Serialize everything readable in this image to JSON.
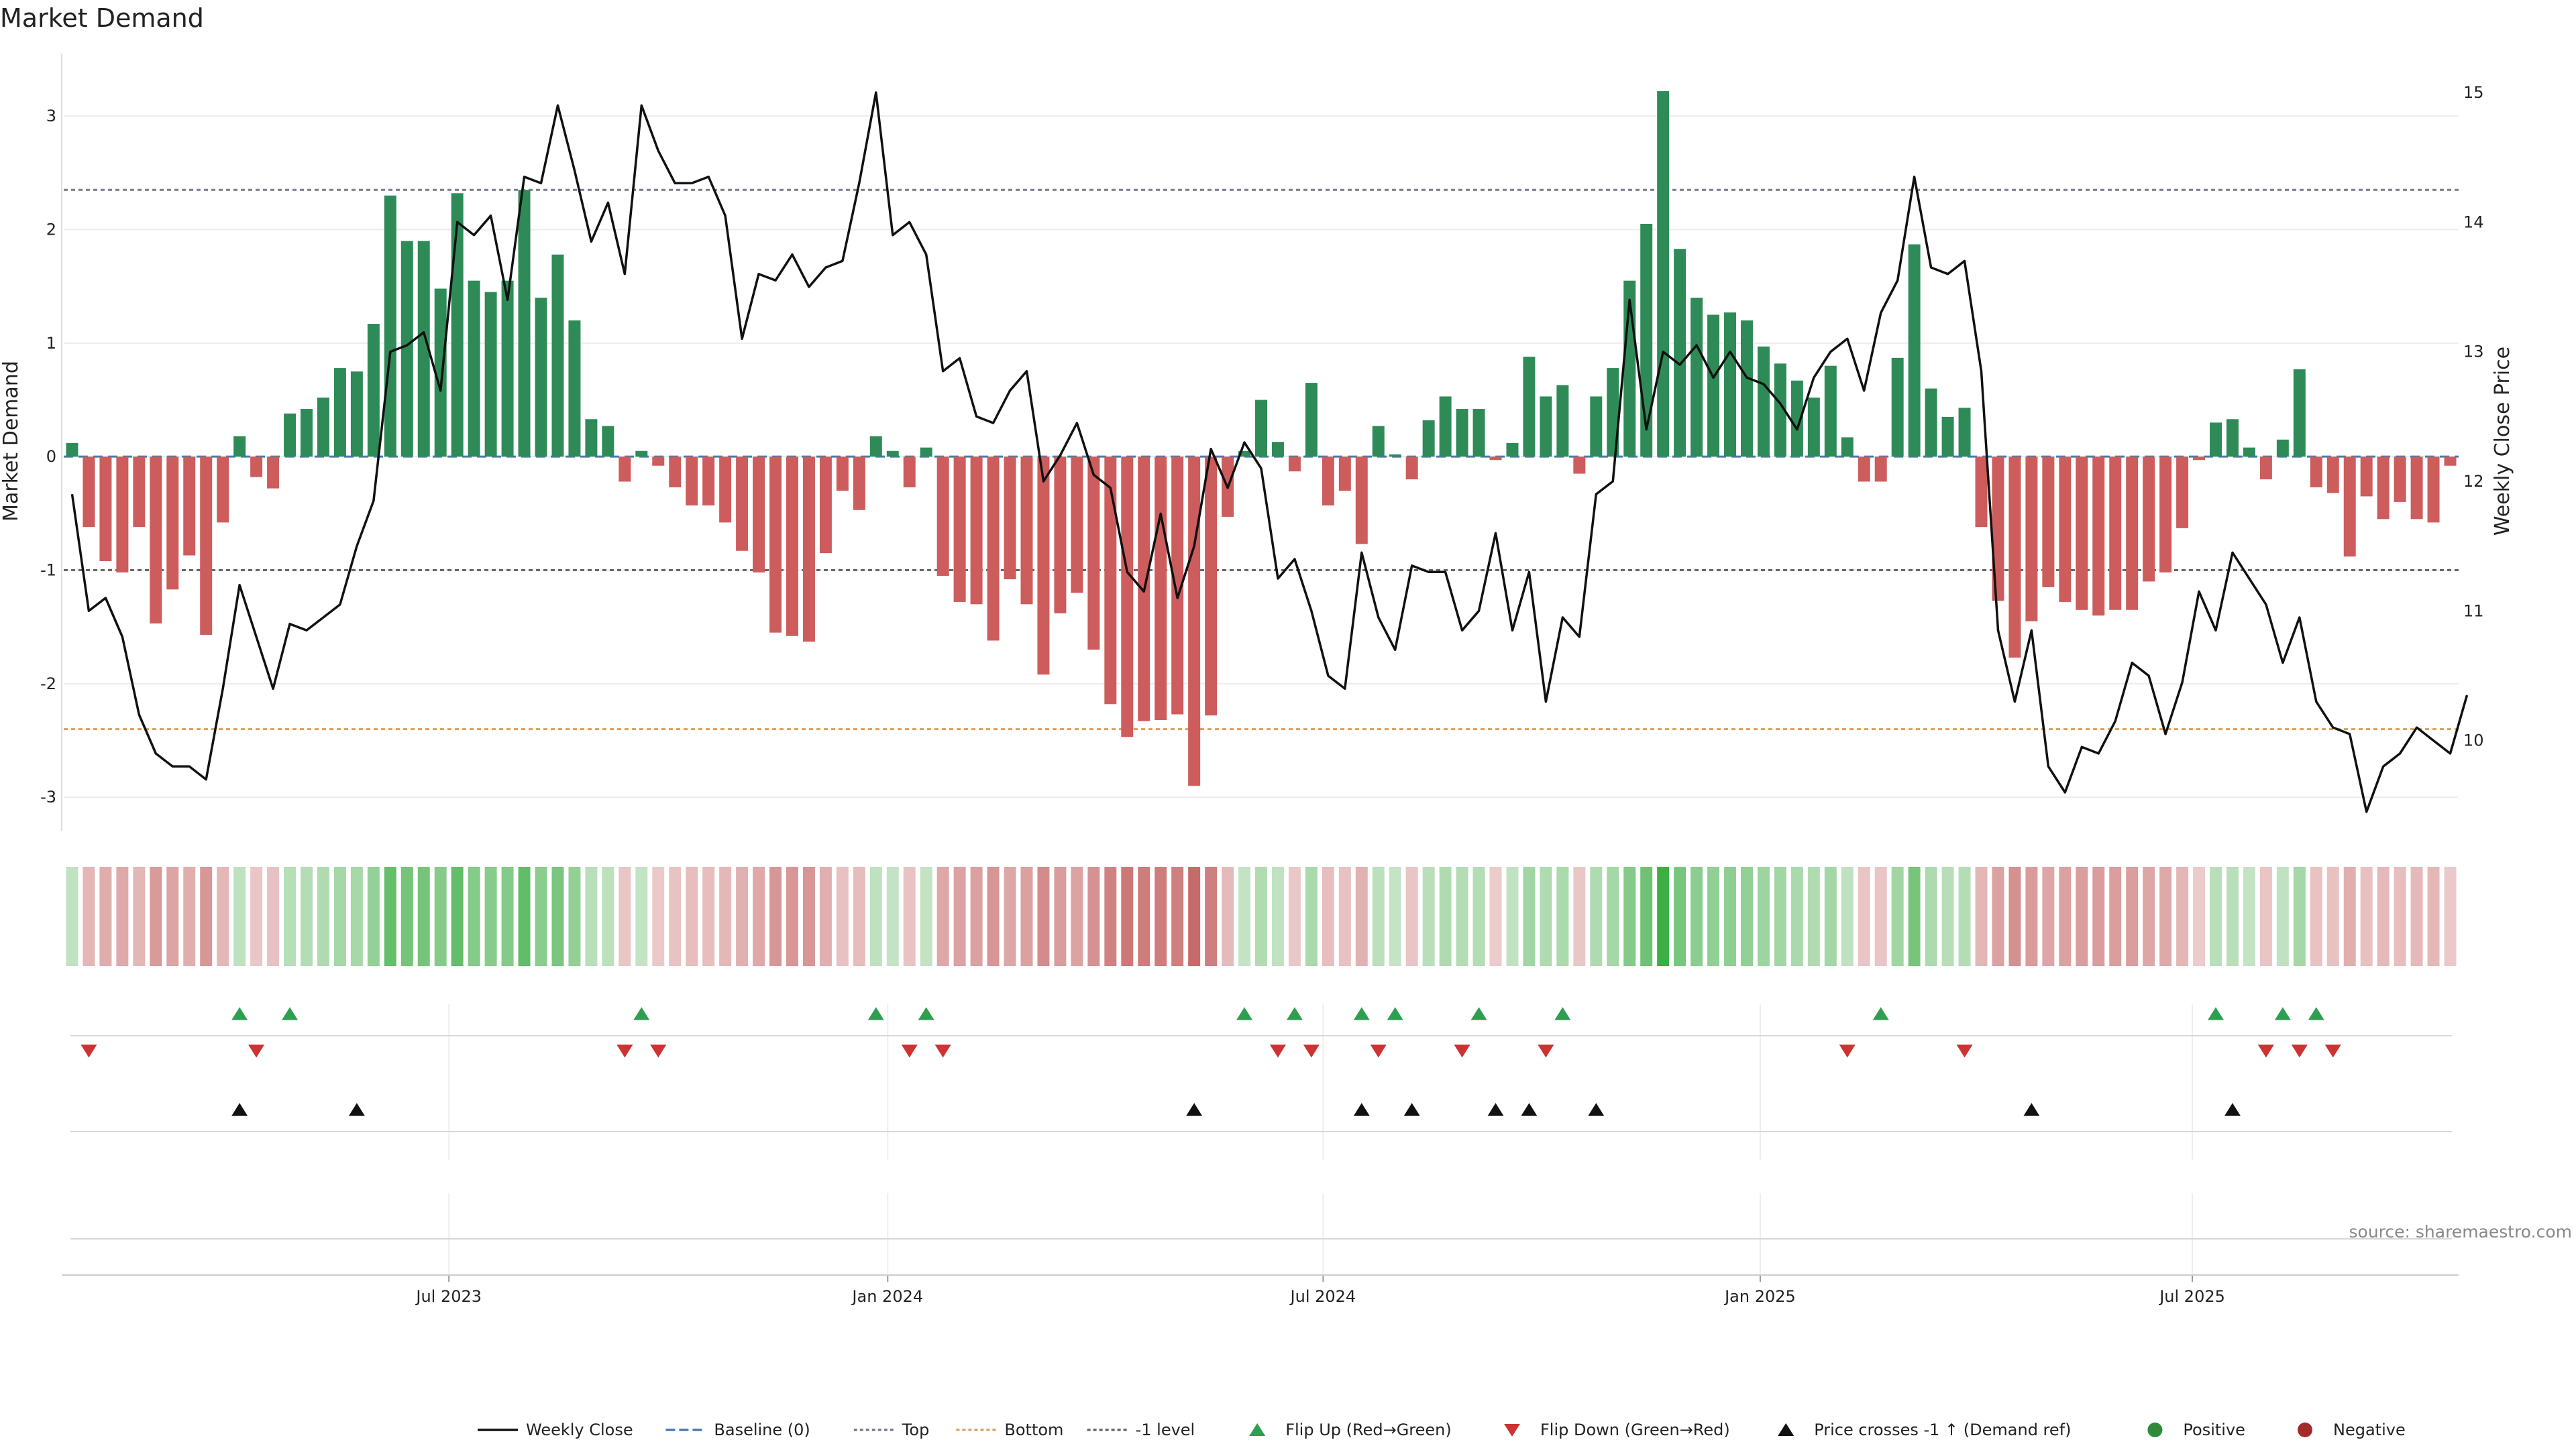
{
  "chart_data": {
    "type": "bar",
    "title": "Market Demand",
    "ylabel": "Market Demand",
    "y2label": "Weekly Close Price",
    "source": "source: sharemaestro.com",
    "ylim": [
      -3.3,
      3.55
    ],
    "y_ticks": [
      3,
      2,
      1,
      0,
      -1,
      -2,
      -3
    ],
    "y2lim": [
      9.3,
      15.3
    ],
    "y2_ticks": [
      15,
      14,
      13,
      12,
      11,
      10
    ],
    "x_ticks": [
      {
        "label": "Jul 2023",
        "week": 22.5
      },
      {
        "label": "Jan 2024",
        "week": 48.7
      },
      {
        "label": "Jul 2024",
        "week": 74.7
      },
      {
        "label": "Jan 2025",
        "week": 100.8
      },
      {
        "label": "Jul 2025",
        "week": 126.6
      }
    ],
    "reference_lines": {
      "top": 2.35,
      "bottom": -2.4,
      "minus_one": -1.0,
      "baseline": 0
    },
    "demand": [
      0.12,
      -0.62,
      -0.92,
      -1.02,
      -0.62,
      -1.47,
      -1.17,
      -0.87,
      -1.57,
      -0.58,
      0.18,
      -0.18,
      -0.28,
      0.38,
      0.42,
      0.52,
      0.78,
      0.75,
      1.17,
      2.3,
      1.9,
      1.9,
      1.48,
      2.32,
      1.55,
      1.45,
      1.55,
      2.35,
      1.4,
      1.78,
      1.2,
      0.33,
      0.27,
      -0.22,
      0.05,
      -0.08,
      -0.27,
      -0.43,
      -0.43,
      -0.58,
      -0.83,
      -1.02,
      -1.55,
      -1.58,
      -1.63,
      -0.85,
      -0.3,
      -0.47,
      0.18,
      0.05,
      -0.27,
      0.08,
      -1.05,
      -1.28,
      -1.3,
      -1.62,
      -1.08,
      -1.3,
      -1.92,
      -1.38,
      -1.2,
      -1.7,
      -2.18,
      -2.47,
      -2.33,
      -2.32,
      -2.27,
      -2.9,
      -2.28,
      -0.53,
      0.05,
      0.5,
      0.13,
      -0.13,
      0.65,
      -0.43,
      -0.3,
      -0.77,
      0.27,
      0.02,
      -0.2,
      0.32,
      0.53,
      0.42,
      0.42,
      -0.03,
      0.12,
      0.88,
      0.53,
      0.63,
      -0.15,
      0.53,
      0.78,
      1.55,
      2.05,
      3.22,
      1.83,
      1.4,
      1.25,
      1.27,
      1.2,
      0.97,
      0.82,
      0.67,
      0.52,
      0.8,
      0.17,
      -0.22,
      -0.22,
      0.87,
      1.87,
      0.6,
      0.35,
      0.43,
      -0.62,
      -1.27,
      -1.77,
      -1.45,
      -1.15,
      -1.28,
      -1.35,
      -1.4,
      -1.35,
      -1.35,
      -1.1,
      -1.02,
      -0.63,
      -0.03,
      0.3,
      0.33,
      0.08,
      -0.2,
      0.15,
      0.77,
      -0.27,
      -0.32,
      -0.88,
      -0.35,
      -0.55,
      -0.4,
      -0.55,
      -0.58,
      -0.08
    ],
    "close": [
      11.9,
      11.0,
      11.1,
      10.8,
      10.2,
      9.9,
      9.8,
      9.8,
      9.7,
      10.4,
      11.2,
      10.8,
      10.4,
      10.9,
      10.85,
      10.95,
      11.05,
      11.5,
      11.85,
      13.0,
      13.05,
      13.15,
      12.7,
      14.0,
      13.9,
      14.05,
      13.4,
      14.35,
      14.3,
      14.9,
      14.4,
      13.85,
      14.15,
      13.6,
      14.9,
      14.55,
      14.3,
      14.3,
      14.35,
      14.05,
      13.1,
      13.6,
      13.55,
      13.75,
      13.5,
      13.65,
      13.7,
      14.3,
      15.0,
      13.9,
      14.0,
      13.75,
      12.85,
      12.95,
      12.5,
      12.45,
      12.7,
      12.85,
      12.0,
      12.2,
      12.45,
      12.05,
      11.95,
      11.3,
      11.15,
      11.75,
      11.1,
      11.5,
      12.25,
      11.95,
      12.3,
      12.1,
      11.25,
      11.4,
      11.0,
      10.5,
      10.4,
      11.45,
      10.95,
      10.7,
      11.35,
      11.3,
      11.3,
      10.85,
      11.0,
      11.6,
      10.85,
      11.3,
      10.3,
      10.95,
      10.8,
      11.9,
      12.0,
      13.4,
      12.4,
      13.0,
      12.9,
      13.05,
      12.8,
      13.0,
      12.8,
      12.75,
      12.6,
      12.4,
      12.8,
      13.0,
      13.1,
      12.7,
      13.3,
      13.55,
      14.35,
      13.65,
      13.6,
      13.7,
      12.85,
      10.85,
      10.3,
      10.85,
      9.8,
      9.6,
      9.95,
      9.9,
      10.15,
      10.6,
      10.5,
      10.05,
      10.45,
      11.15,
      10.85,
      11.45,
      11.25,
      11.05,
      10.6,
      10.95,
      10.3,
      10.1,
      10.05,
      9.45,
      9.8,
      9.9,
      10.1,
      10.0,
      9.9,
      10.35
    ],
    "flip_up_weeks": [
      10,
      13,
      34,
      48,
      51,
      70,
      73,
      77,
      79,
      84,
      89,
      108,
      128,
      132,
      134
    ],
    "flip_down_weeks": [
      1,
      11,
      33,
      35,
      50,
      52,
      72,
      74,
      78,
      83,
      88,
      106,
      113,
      131,
      133,
      135
    ],
    "price_cross_weeks": [
      10,
      17,
      67,
      77,
      80,
      85,
      87,
      91,
      117,
      129
    ],
    "legend": [
      {
        "label": "Weekly Close",
        "kind": "line-solid",
        "color": "#111111"
      },
      {
        "label": "Baseline (0)",
        "kind": "line-dash",
        "color": "#4a7ab5"
      },
      {
        "label": "Top",
        "kind": "line-dot",
        "color": "#7a7a8f"
      },
      {
        "label": "Bottom",
        "kind": "line-dot",
        "color": "#d9a061"
      },
      {
        "label": "-1 level",
        "kind": "line-dot",
        "color": "#666666"
      },
      {
        "label": "Flip Up (Red→Green)",
        "kind": "tri-up",
        "color": "#2e9e4f"
      },
      {
        "label": "Flip Down (Green→Red)",
        "kind": "tri-down",
        "color": "#cc3333"
      },
      {
        "label": "Price crosses -1 ↑ (Demand ref)",
        "kind": "tri-up",
        "color": "#111111"
      },
      {
        "label": "Positive",
        "kind": "circle",
        "color": "#2e8b3a"
      },
      {
        "label": "Negative",
        "kind": "circle",
        "color": "#a52a2a"
      }
    ],
    "colors": {
      "positive": "#2e8b57",
      "negative": "#cd5c5c",
      "line": "#111111",
      "grid": "#ececec"
    }
  }
}
